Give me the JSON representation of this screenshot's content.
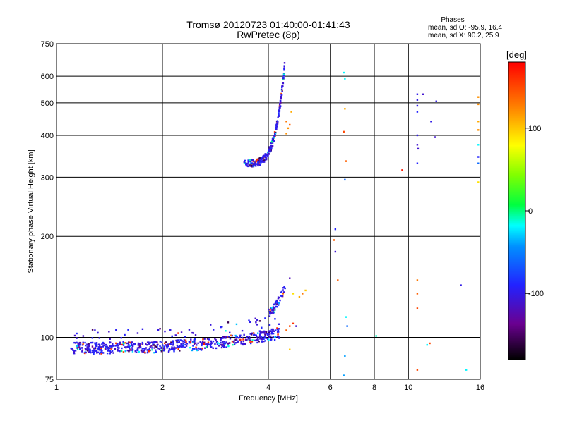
{
  "chart_data": {
    "type": "scatter",
    "title": "Tromsø 20120723 01:40:00-01:41:43",
    "subtitle": "RwPretec (8p)",
    "xlabel": "Frequency [MHz]",
    "ylabel": "Stationary phase Virtual Height [km]",
    "x_scale": "log",
    "y_scale": "log",
    "xlim": [
      1,
      16
    ],
    "ylim": [
      75,
      750
    ],
    "x_ticks": [
      {
        "value": 1,
        "label": "1"
      },
      {
        "value": 2,
        "label": "2"
      },
      {
        "value": 4,
        "label": "4"
      },
      {
        "value": 6,
        "label": "6"
      },
      {
        "value": 8,
        "label": "8"
      },
      {
        "value": 10,
        "label": "10"
      },
      {
        "value": 16,
        "label": "16"
      }
    ],
    "y_ticks": [
      {
        "value": 75,
        "label": "75"
      },
      {
        "value": 100,
        "label": "100"
      },
      {
        "value": 200,
        "label": "200"
      },
      {
        "value": 300,
        "label": "300"
      },
      {
        "value": 400,
        "label": "400"
      },
      {
        "value": 500,
        "label": "500"
      },
      {
        "value": 600,
        "label": "600"
      },
      {
        "value": 750,
        "label": "750"
      }
    ],
    "grid": true,
    "stats": {
      "heading": "Phases",
      "line1": "mean, sd,O: -95.9, 16.4",
      "line2": "mean, sd,X:  90.2, 25.9"
    },
    "colorbar": {
      "label": "[deg]",
      "range": [
        -180,
        180
      ],
      "ticks": [
        {
          "value": 100,
          "label": "100"
        },
        {
          "value": 0,
          "label": "0"
        },
        {
          "value": -100,
          "label": "-100"
        }
      ]
    },
    "traces": [
      {
        "name": "",
        "x_range": [
          1.1,
          4.3
        ],
        "y_range": [
          93,
          103
        ],
        "phase": -100,
        "count": 650,
        "shape": "e_layer"
      },
      {
        "name": "",
        "x_range": [
          3.4,
          4.45
        ],
        "y_range": [
          330,
          650
        ],
        "phase": -100,
        "count": 240,
        "shape": "f2_cusp"
      },
      {
        "name": "",
        "x_range": [
          4.0,
          4.5
        ],
        "y_range": [
          118,
          145
        ],
        "phase": -100,
        "count": 60,
        "shape": "es_upper"
      }
    ],
    "points": [
      {
        "x": 4.65,
        "y": 470,
        "phase": 110
      },
      {
        "x": 4.5,
        "y": 440,
        "phase": 130
      },
      {
        "x": 4.55,
        "y": 420,
        "phase": 120
      },
      {
        "x": 4.6,
        "y": 430,
        "phase": 140
      },
      {
        "x": 4.5,
        "y": 405,
        "phase": 120
      },
      {
        "x": 4.7,
        "y": 135,
        "phase": 90
      },
      {
        "x": 4.9,
        "y": 132,
        "phase": 110
      },
      {
        "x": 5.0,
        "y": 135,
        "phase": 130
      },
      {
        "x": 5.1,
        "y": 138,
        "phase": 100
      },
      {
        "x": 4.6,
        "y": 108,
        "phase": 150
      },
      {
        "x": 4.7,
        "y": 110,
        "phase": 160
      },
      {
        "x": 4.5,
        "y": 105,
        "phase": 140
      },
      {
        "x": 4.6,
        "y": 92,
        "phase": 100
      },
      {
        "x": 4.8,
        "y": 108,
        "phase": -110
      },
      {
        "x": 4.6,
        "y": 150,
        "phase": -120
      },
      {
        "x": 6.2,
        "y": 210,
        "phase": -90
      },
      {
        "x": 6.15,
        "y": 195,
        "phase": 140
      },
      {
        "x": 6.2,
        "y": 180,
        "phase": -110
      },
      {
        "x": 6.3,
        "y": 148,
        "phase": 140
      },
      {
        "x": 6.55,
        "y": 615,
        "phase": -20
      },
      {
        "x": 6.6,
        "y": 590,
        "phase": -20
      },
      {
        "x": 6.6,
        "y": 480,
        "phase": 110
      },
      {
        "x": 6.55,
        "y": 410,
        "phase": 150
      },
      {
        "x": 6.65,
        "y": 335,
        "phase": 140
      },
      {
        "x": 6.6,
        "y": 295,
        "phase": -60
      },
      {
        "x": 6.65,
        "y": 115,
        "phase": -20
      },
      {
        "x": 6.7,
        "y": 108,
        "phase": -60
      },
      {
        "x": 6.6,
        "y": 88,
        "phase": -40
      },
      {
        "x": 6.55,
        "y": 77,
        "phase": -40
      },
      {
        "x": 8.1,
        "y": 101,
        "phase": -10
      },
      {
        "x": 9.6,
        "y": 315,
        "phase": 170
      },
      {
        "x": 10.6,
        "y": 530,
        "phase": -100
      },
      {
        "x": 10.6,
        "y": 510,
        "phase": -100
      },
      {
        "x": 10.6,
        "y": 490,
        "phase": -100
      },
      {
        "x": 10.6,
        "y": 470,
        "phase": -90
      },
      {
        "x": 10.6,
        "y": 400,
        "phase": -100
      },
      {
        "x": 10.6,
        "y": 375,
        "phase": -110
      },
      {
        "x": 10.65,
        "y": 365,
        "phase": -110
      },
      {
        "x": 10.6,
        "y": 330,
        "phase": -90
      },
      {
        "x": 11.0,
        "y": 530,
        "phase": -110
      },
      {
        "x": 12.0,
        "y": 505,
        "phase": -100
      },
      {
        "x": 11.6,
        "y": 440,
        "phase": -100
      },
      {
        "x": 11.9,
        "y": 395,
        "phase": -110
      },
      {
        "x": 10.6,
        "y": 148,
        "phase": 130
      },
      {
        "x": 10.6,
        "y": 135,
        "phase": 140
      },
      {
        "x": 10.6,
        "y": 122,
        "phase": 150
      },
      {
        "x": 10.6,
        "y": 80,
        "phase": 150
      },
      {
        "x": 11.3,
        "y": 95,
        "phase": -20
      },
      {
        "x": 11.5,
        "y": 96,
        "phase": 150
      },
      {
        "x": 14.1,
        "y": 143,
        "phase": -100
      },
      {
        "x": 14.6,
        "y": 80,
        "phase": -20
      },
      {
        "x": 15.8,
        "y": 520,
        "phase": 120
      },
      {
        "x": 15.8,
        "y": 495,
        "phase": 120
      },
      {
        "x": 15.8,
        "y": 440,
        "phase": 110
      },
      {
        "x": 15.8,
        "y": 415,
        "phase": 120
      },
      {
        "x": 15.8,
        "y": 375,
        "phase": -20
      },
      {
        "x": 15.8,
        "y": 345,
        "phase": -90
      },
      {
        "x": 15.8,
        "y": 330,
        "phase": -60
      },
      {
        "x": 15.8,
        "y": 290,
        "phase": 90
      }
    ]
  }
}
